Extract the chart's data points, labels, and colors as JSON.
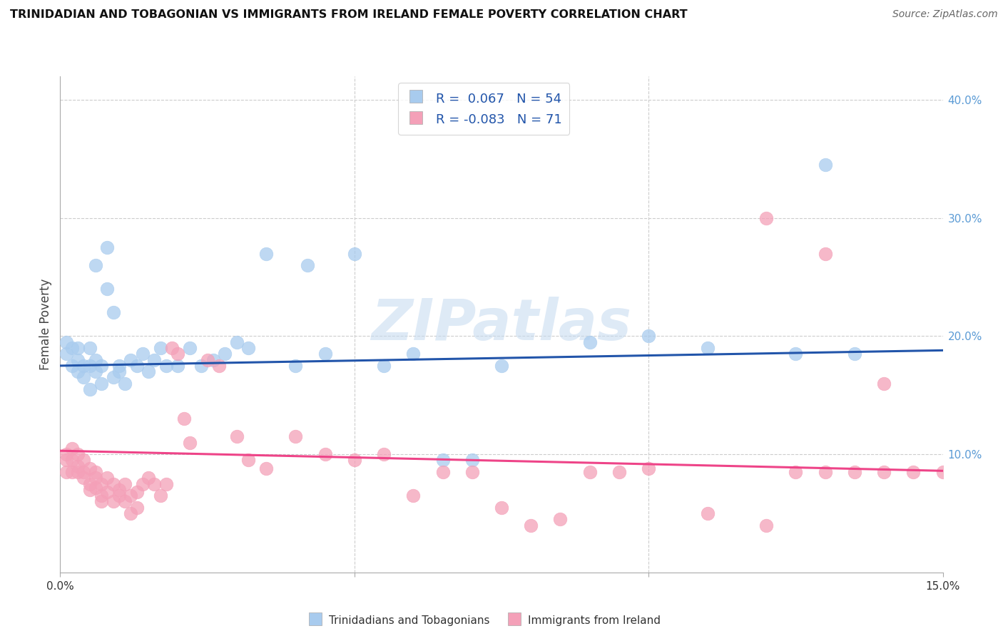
{
  "title": "TRINIDADIAN AND TOBAGONIAN VS IMMIGRANTS FROM IRELAND FEMALE POVERTY CORRELATION CHART",
  "source": "Source: ZipAtlas.com",
  "ylabel": "Female Poverty",
  "xlim": [
    0.0,
    0.15
  ],
  "ylim": [
    0.0,
    0.42
  ],
  "x_ticks": [
    0.0,
    0.05,
    0.1,
    0.15
  ],
  "x_tick_labels": [
    "0.0%",
    "",
    "",
    "15.0%"
  ],
  "y_ticks_right": [
    0.1,
    0.2,
    0.3,
    0.4
  ],
  "y_tick_labels_right": [
    "10.0%",
    "20.0%",
    "30.0%",
    "40.0%"
  ],
  "legend_label1": "Trinidadians and Tobagonians",
  "legend_label2": "Immigrants from Ireland",
  "color_blue": "#A8CBEE",
  "color_pink": "#F4A0B8",
  "line_color_blue": "#2255AA",
  "line_color_pink": "#EE4488",
  "watermark": "ZIPatlas",
  "blue_scatter_x": [
    0.001,
    0.001,
    0.002,
    0.002,
    0.003,
    0.003,
    0.003,
    0.004,
    0.004,
    0.005,
    0.005,
    0.005,
    0.006,
    0.006,
    0.006,
    0.007,
    0.007,
    0.008,
    0.008,
    0.009,
    0.009,
    0.01,
    0.01,
    0.011,
    0.012,
    0.013,
    0.014,
    0.015,
    0.016,
    0.017,
    0.018,
    0.02,
    0.022,
    0.024,
    0.026,
    0.028,
    0.03,
    0.032,
    0.035,
    0.04,
    0.042,
    0.045,
    0.05,
    0.055,
    0.06,
    0.065,
    0.07,
    0.075,
    0.09,
    0.1,
    0.11,
    0.125,
    0.13,
    0.135
  ],
  "blue_scatter_y": [
    0.185,
    0.195,
    0.175,
    0.19,
    0.17,
    0.18,
    0.19,
    0.165,
    0.175,
    0.155,
    0.175,
    0.19,
    0.26,
    0.18,
    0.17,
    0.16,
    0.175,
    0.275,
    0.24,
    0.22,
    0.165,
    0.175,
    0.17,
    0.16,
    0.18,
    0.175,
    0.185,
    0.17,
    0.18,
    0.19,
    0.175,
    0.175,
    0.19,
    0.175,
    0.18,
    0.185,
    0.195,
    0.19,
    0.27,
    0.175,
    0.26,
    0.185,
    0.27,
    0.175,
    0.185,
    0.095,
    0.095,
    0.175,
    0.195,
    0.2,
    0.19,
    0.185,
    0.345,
    0.185
  ],
  "pink_scatter_x": [
    0.001,
    0.001,
    0.001,
    0.002,
    0.002,
    0.002,
    0.003,
    0.003,
    0.003,
    0.004,
    0.004,
    0.004,
    0.005,
    0.005,
    0.005,
    0.006,
    0.006,
    0.006,
    0.007,
    0.007,
    0.007,
    0.008,
    0.008,
    0.009,
    0.009,
    0.01,
    0.01,
    0.011,
    0.011,
    0.012,
    0.012,
    0.013,
    0.013,
    0.014,
    0.015,
    0.016,
    0.017,
    0.018,
    0.019,
    0.02,
    0.021,
    0.022,
    0.025,
    0.027,
    0.03,
    0.032,
    0.035,
    0.04,
    0.045,
    0.05,
    0.055,
    0.06,
    0.065,
    0.07,
    0.075,
    0.08,
    0.085,
    0.09,
    0.095,
    0.1,
    0.11,
    0.12,
    0.125,
    0.13,
    0.135,
    0.14,
    0.145,
    0.12,
    0.13,
    0.14,
    0.15
  ],
  "pink_scatter_y": [
    0.1,
    0.095,
    0.085,
    0.105,
    0.095,
    0.085,
    0.09,
    0.085,
    0.1,
    0.095,
    0.085,
    0.08,
    0.075,
    0.088,
    0.07,
    0.085,
    0.08,
    0.072,
    0.075,
    0.065,
    0.06,
    0.08,
    0.068,
    0.075,
    0.06,
    0.065,
    0.07,
    0.075,
    0.06,
    0.065,
    0.05,
    0.055,
    0.068,
    0.075,
    0.08,
    0.075,
    0.065,
    0.075,
    0.19,
    0.185,
    0.13,
    0.11,
    0.18,
    0.175,
    0.115,
    0.095,
    0.088,
    0.115,
    0.1,
    0.095,
    0.1,
    0.065,
    0.085,
    0.085,
    0.055,
    0.04,
    0.045,
    0.085,
    0.085,
    0.088,
    0.05,
    0.04,
    0.085,
    0.085,
    0.085,
    0.085,
    0.085,
    0.3,
    0.27,
    0.16,
    0.085
  ],
  "blue_line_x": [
    0.0,
    0.15
  ],
  "blue_line_y": [
    0.175,
    0.188
  ],
  "pink_line_x": [
    0.0,
    0.15
  ],
  "pink_line_y": [
    0.103,
    0.086
  ],
  "grid_color": "#cccccc",
  "grid_linestyle": "--",
  "grid_linewidth": 0.8
}
